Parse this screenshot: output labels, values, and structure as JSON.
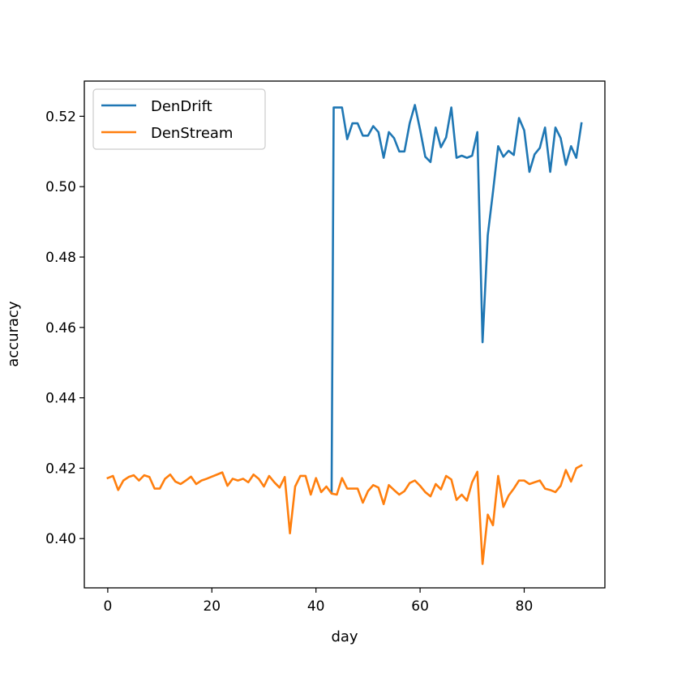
{
  "chart_data": {
    "type": "line",
    "xlabel": "day",
    "ylabel": "accuracy",
    "xlim": [
      -4.5,
      95.5
    ],
    "ylim": [
      0.386,
      0.53
    ],
    "xticks": [
      0,
      20,
      40,
      60,
      80
    ],
    "yticks": [
      0.4,
      0.42,
      0.44,
      0.46,
      0.48,
      0.5,
      0.52
    ],
    "ytick_labels": [
      "0.40",
      "0.42",
      "0.44",
      "0.46",
      "0.48",
      "0.50",
      "0.52"
    ],
    "grid": false,
    "legend_position": "top-left",
    "series": [
      {
        "name": "DenDrift",
        "color": "#1f77b4",
        "x": [
          43,
          43.4,
          44,
          45,
          46,
          47,
          48,
          49,
          50,
          51,
          52,
          53,
          54,
          55,
          56,
          57,
          58,
          59,
          60,
          61,
          62,
          63,
          64,
          65,
          66,
          67,
          68,
          69,
          70,
          71,
          72,
          73,
          74,
          75,
          76,
          77,
          78,
          79,
          80,
          81,
          82,
          83,
          84,
          85,
          86,
          87,
          88,
          89,
          90,
          91
        ],
        "values": [
          0.413,
          0.5225,
          0.5225,
          0.5225,
          0.5135,
          0.518,
          0.518,
          0.5145,
          0.5145,
          0.5172,
          0.5155,
          0.5082,
          0.5155,
          0.5138,
          0.51,
          0.51,
          0.518,
          0.5232,
          0.5162,
          0.5085,
          0.507,
          0.5168,
          0.5112,
          0.514,
          0.5225,
          0.5082,
          0.5088,
          0.5082,
          0.5088,
          0.5155,
          0.4558,
          0.4862,
          0.4985,
          0.5115,
          0.5085,
          0.5102,
          0.509,
          0.5195,
          0.516,
          0.5042,
          0.5092,
          0.511,
          0.5168,
          0.5042,
          0.5168,
          0.5138,
          0.5062,
          0.5115,
          0.5082,
          0.518
        ]
      },
      {
        "name": "DenStream",
        "color": "#ff7f0e",
        "x": [
          0,
          1,
          2,
          3,
          4,
          5,
          6,
          7,
          8,
          9,
          10,
          11,
          12,
          13,
          14,
          15,
          16,
          17,
          18,
          19,
          20,
          21,
          22,
          23,
          24,
          25,
          26,
          27,
          28,
          29,
          30,
          31,
          32,
          33,
          34,
          35,
          36,
          37,
          38,
          39,
          40,
          41,
          42,
          43,
          44,
          45,
          46,
          47,
          48,
          49,
          50,
          51,
          52,
          53,
          54,
          55,
          56,
          57,
          58,
          59,
          60,
          61,
          62,
          63,
          64,
          65,
          66,
          67,
          68,
          69,
          70,
          71,
          72,
          73,
          74,
          75,
          76,
          77,
          78,
          79,
          80,
          81,
          82,
          83,
          84,
          85,
          86,
          87,
          88,
          89,
          90,
          91
        ],
        "values": [
          0.4172,
          0.4178,
          0.4138,
          0.4165,
          0.4175,
          0.418,
          0.4165,
          0.418,
          0.4175,
          0.4142,
          0.4142,
          0.417,
          0.4182,
          0.4162,
          0.4155,
          0.4165,
          0.4176,
          0.4155,
          0.4165,
          0.417,
          0.4176,
          0.4182,
          0.4188,
          0.415,
          0.417,
          0.4165,
          0.417,
          0.416,
          0.4182,
          0.417,
          0.4148,
          0.4178,
          0.416,
          0.4145,
          0.4175,
          0.4015,
          0.4148,
          0.4178,
          0.4178,
          0.4125,
          0.4172,
          0.4132,
          0.4148,
          0.4128,
          0.4125,
          0.4172,
          0.4142,
          0.4142,
          0.4142,
          0.4102,
          0.4135,
          0.4152,
          0.4145,
          0.4098,
          0.4152,
          0.4138,
          0.4125,
          0.4135,
          0.4158,
          0.4165,
          0.415,
          0.4132,
          0.412,
          0.4155,
          0.414,
          0.4178,
          0.4168,
          0.411,
          0.4125,
          0.4108,
          0.416,
          0.419,
          0.3928,
          0.4068,
          0.4038,
          0.4178,
          0.409,
          0.4122,
          0.4142,
          0.4165,
          0.4165,
          0.4155,
          0.416,
          0.4165,
          0.4142,
          0.4138,
          0.4132,
          0.415,
          0.4195,
          0.4162,
          0.42,
          0.4208
        ]
      }
    ]
  }
}
